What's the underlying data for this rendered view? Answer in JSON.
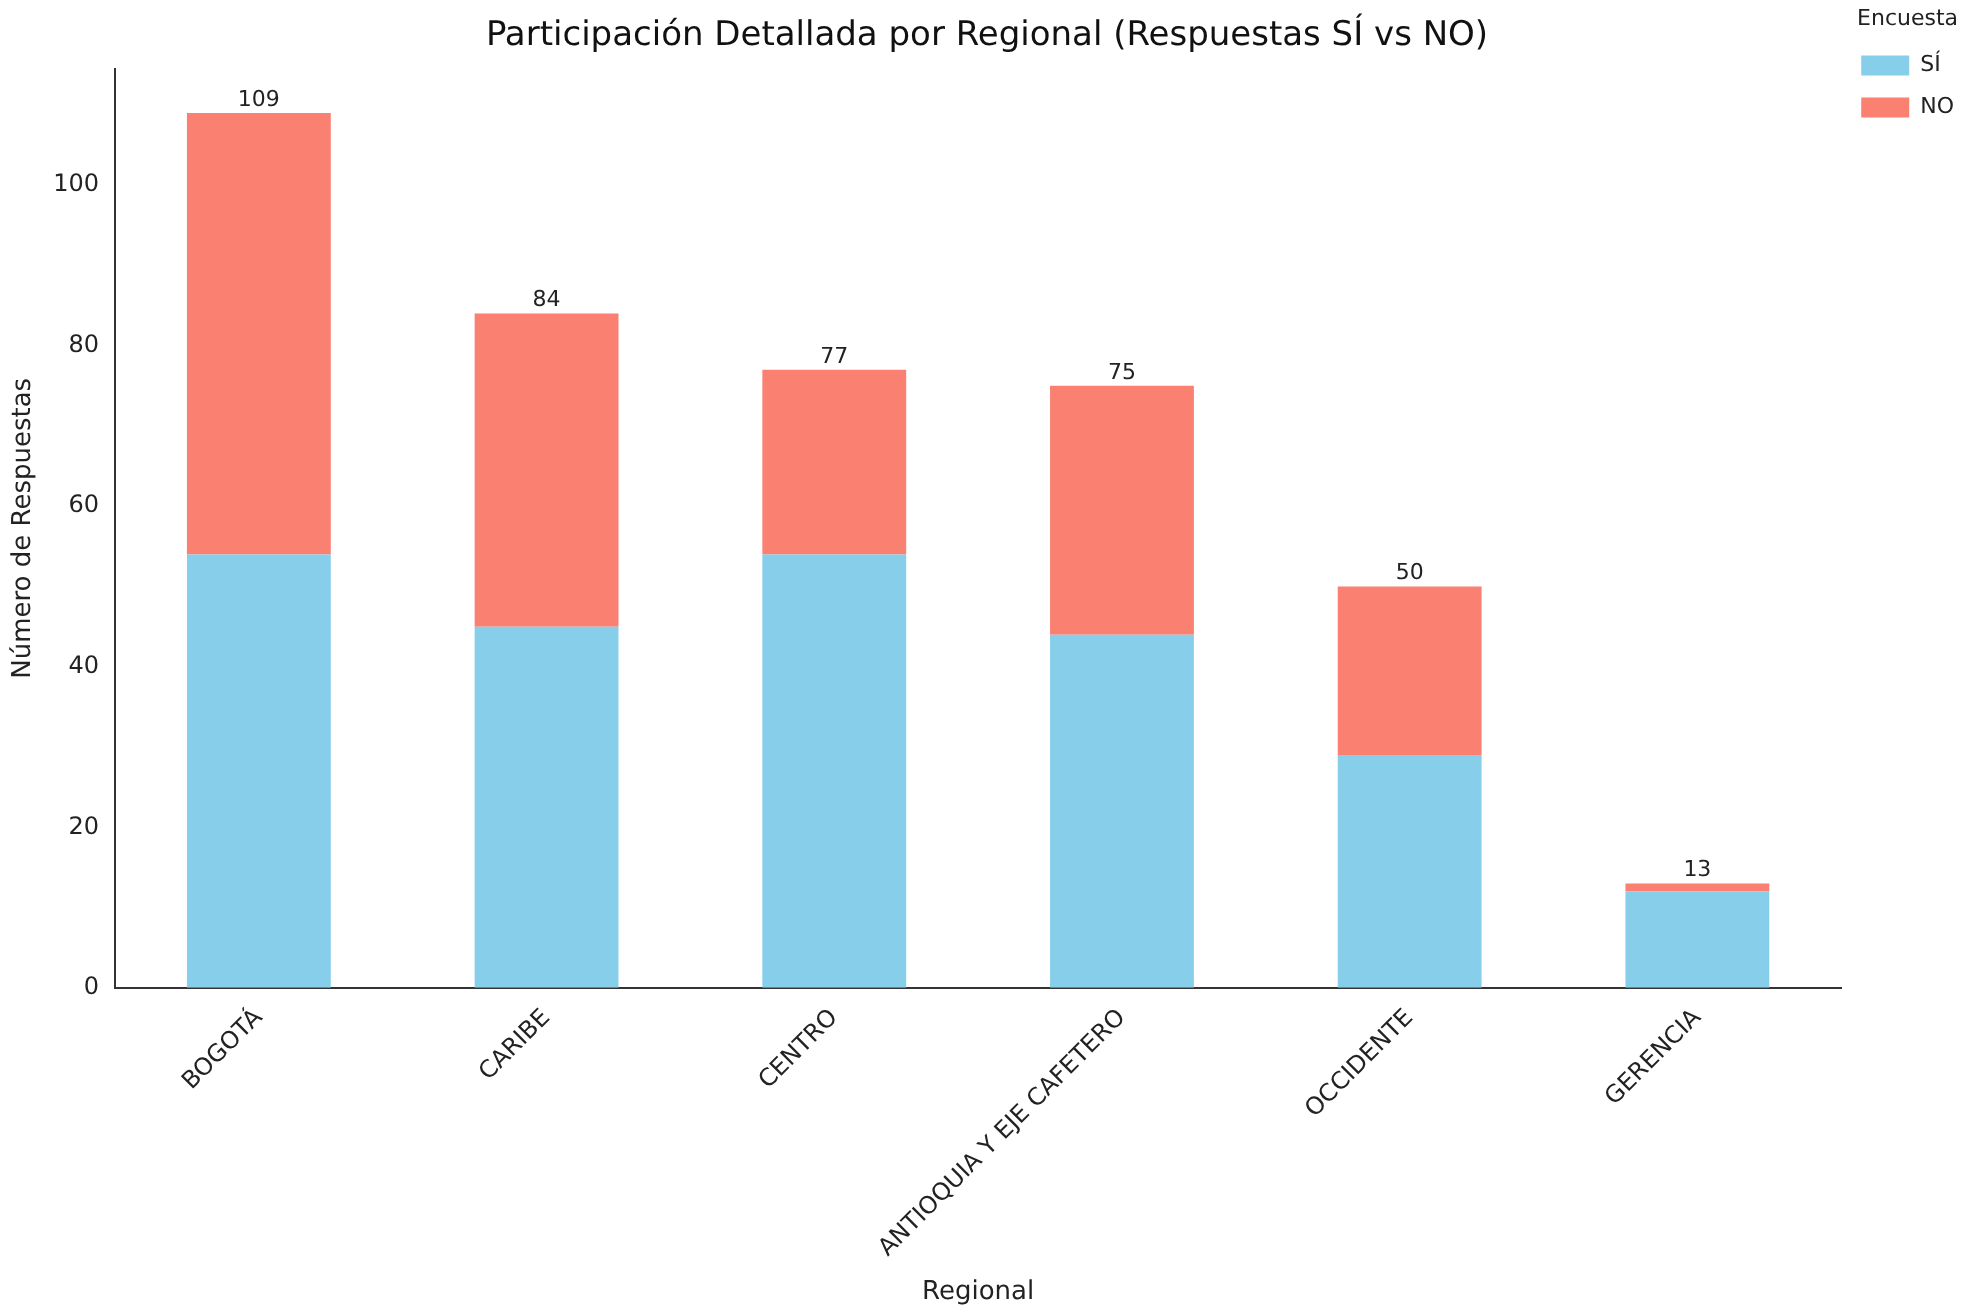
{
  "chart_data": {
    "type": "bar",
    "title": "Participación Detallada por Regional (Respuestas SÍ vs NO)",
    "xlabel": "Regional",
    "ylabel": "Número de Respuestas",
    "legend_title": "Encuesta",
    "categories": [
      "BOGOTÁ",
      "CARIBE",
      "CENTRO",
      "ANTIOQUIA Y EJE CAFETERO",
      "OCCIDENTE",
      "GERENCIA"
    ],
    "series": [
      {
        "name": "SÍ",
        "color": "#87ceeb",
        "values": [
          54,
          45,
          54,
          44,
          29,
          12
        ]
      },
      {
        "name": "NO",
        "color": "#fa8072",
        "values": [
          55,
          39,
          23,
          31,
          21,
          1
        ]
      }
    ],
    "stacked": true,
    "totals": [
      "109",
      "84",
      "77",
      "75",
      "50",
      "13"
    ],
    "ylim": [
      0,
      114.5
    ],
    "yticks": [
      0,
      20,
      40,
      60,
      80,
      100
    ],
    "grid": false,
    "legend": "top right"
  }
}
